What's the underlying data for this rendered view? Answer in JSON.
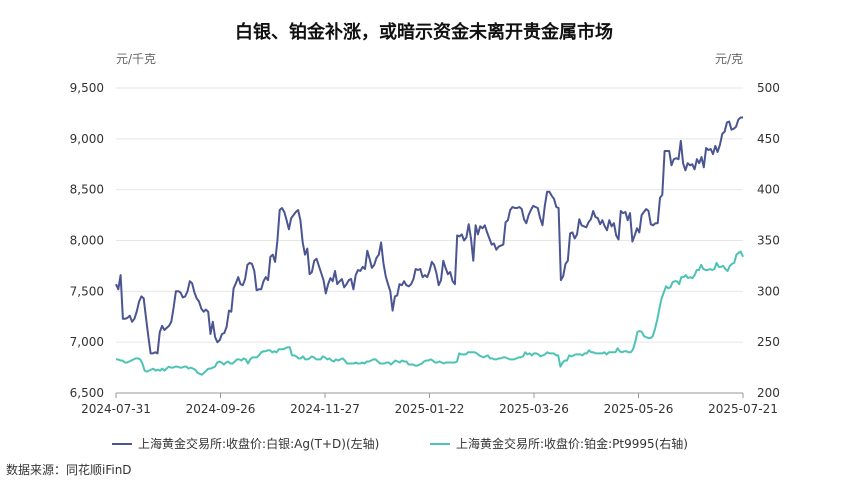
{
  "chart_data": {
    "type": "line",
    "title": "白银、铂金补涨，或暗示资金未离开贵金属市场",
    "left_unit": "元/千克",
    "right_unit": "元/克",
    "source": "数据来源：同花顺iFinD",
    "x_tick_labels": [
      "2024-07-31",
      "2024-09-26",
      "2024-11-27",
      "2025-01-22",
      "2025-03-26",
      "2025-05-26",
      "2025-07-21"
    ],
    "y_left": {
      "min": 6500,
      "max": 9500,
      "ticks": [
        6500,
        7000,
        7500,
        8000,
        8500,
        9000,
        9500
      ],
      "tick_labels": [
        "6,500",
        "7,000",
        "7,500",
        "8,000",
        "8,500",
        "9,000",
        "9,500"
      ]
    },
    "y_right": {
      "min": 200,
      "max": 500,
      "ticks": [
        200,
        250,
        300,
        350,
        400,
        450,
        500
      ],
      "tick_labels": [
        "200",
        "250",
        "300",
        "350",
        "400",
        "450",
        "500"
      ]
    },
    "grid": true,
    "legend_position": "bottom",
    "series": [
      {
        "name": "上海黄金交易所:收盘价:白银:Ag(T+D)(左轴)",
        "axis": "left",
        "color": "#4a5592",
        "values": [
          7570,
          7520,
          7660,
          7230,
          7230,
          7240,
          7260,
          7200,
          7230,
          7300,
          7400,
          7450,
          7430,
          7240,
          7060,
          6890,
          6890,
          6900,
          6890,
          7100,
          7160,
          7120,
          7140,
          7160,
          7200,
          7340,
          7500,
          7500,
          7490,
          7440,
          7450,
          7500,
          7600,
          7580,
          7490,
          7430,
          7400,
          7330,
          7300,
          7320,
          7300,
          7080,
          7200,
          7050,
          7000,
          7020,
          7080,
          7090,
          7150,
          7310,
          7300,
          7530,
          7580,
          7640,
          7570,
          7560,
          7620,
          7760,
          7780,
          7770,
          7700,
          7510,
          7520,
          7520,
          7600,
          7640,
          7610,
          7840,
          7860,
          7790,
          8000,
          8300,
          8320,
          8280,
          8200,
          8110,
          8220,
          8250,
          8280,
          8300,
          8200,
          7980,
          7860,
          7920,
          7670,
          7690,
          7800,
          7820,
          7750,
          7680,
          7610,
          7480,
          7570,
          7630,
          7600,
          7700,
          7570,
          7600,
          7620,
          7540,
          7570,
          7610,
          7620,
          7520,
          7660,
          7710,
          7700,
          7740,
          7720,
          7900,
          7820,
          7730,
          7760,
          7830,
          7860,
          7980,
          7780,
          7650,
          7570,
          7500,
          7310,
          7450,
          7460,
          7570,
          7560,
          7600,
          7560,
          7550,
          7570,
          7620,
          7720,
          7710,
          7720,
          7640,
          7660,
          7640,
          7700,
          7790,
          7760,
          7680,
          7560,
          7610,
          7800,
          7730,
          7670,
          7690,
          7600,
          7570,
          8050,
          8040,
          8060,
          8000,
          8030,
          8160,
          8020,
          7800,
          8150,
          8060,
          8140,
          8120,
          8150,
          8080,
          8020,
          7960,
          7970,
          7910,
          7940,
          7950,
          7960,
          8180,
          8200,
          8300,
          8330,
          8320,
          8320,
          8330,
          8310,
          8210,
          8170,
          8250,
          8300,
          8340,
          8330,
          8320,
          8220,
          8150,
          8340,
          8480,
          8480,
          8440,
          8410,
          8330,
          8320,
          7610,
          7650,
          7770,
          7800,
          8070,
          8080,
          8020,
          8060,
          8210,
          8150,
          8140,
          8130,
          8180,
          8210,
          8290,
          8230,
          8220,
          8160,
          8200,
          8140,
          8100,
          8200,
          8140,
          8170,
          8050,
          8010,
          8290,
          8270,
          8280,
          8200,
          8270,
          7990,
          8050,
          8120,
          8080,
          8250,
          8280,
          8310,
          8290,
          8160,
          8150,
          8170,
          8170,
          8420,
          8450,
          8880,
          8880,
          8880,
          8740,
          8800,
          8810,
          8800,
          8980,
          8760,
          8690,
          8760,
          8740,
          8750,
          8700,
          8800,
          8760,
          8820,
          8720,
          8910,
          8890,
          8900,
          8850,
          8930,
          8870,
          8940,
          9050,
          9070,
          9160,
          9170,
          9090,
          9100,
          9120,
          9190,
          9210,
          9210
        ]
      },
      {
        "name": "上海黄金交易所:收盘价:铂金:Pt9995(右轴)",
        "axis": "right",
        "color": "#4cc3b4",
        "values": [
          233,
          233,
          232,
          232,
          230,
          230,
          231,
          232,
          233,
          234,
          234,
          233,
          229,
          222,
          221,
          222,
          223,
          224,
          222,
          223,
          222,
          224,
          222,
          224,
          226,
          225,
          225,
          226,
          226,
          225,
          225,
          226,
          226,
          224,
          225,
          224,
          223,
          220,
          219,
          218,
          220,
          222,
          224,
          224,
          225,
          226,
          230,
          231,
          230,
          228,
          230,
          231,
          229,
          229,
          231,
          233,
          233,
          232,
          234,
          233,
          229,
          233,
          235,
          235,
          235,
          237,
          240,
          241,
          241,
          242,
          242,
          240,
          241,
          240,
          243,
          243,
          243,
          244,
          245,
          245,
          237,
          237,
          236,
          234,
          234,
          236,
          233,
          233,
          234,
          236,
          235,
          233,
          233,
          233,
          236,
          235,
          233,
          234,
          232,
          231,
          233,
          232,
          233,
          234,
          232,
          229,
          229,
          229,
          229,
          230,
          229,
          229,
          230,
          229,
          231,
          231,
          232,
          233,
          233,
          231,
          229,
          229,
          229,
          230,
          230,
          228,
          230,
          232,
          231,
          230,
          232,
          231,
          231,
          228,
          228,
          228,
          227,
          227,
          228,
          229,
          231,
          232,
          232,
          233,
          232,
          230,
          230,
          231,
          230,
          229,
          230,
          230,
          230,
          230,
          230,
          231,
          239,
          238,
          238,
          238,
          240,
          240,
          240,
          240,
          239,
          237,
          236,
          235,
          236,
          237,
          234,
          234,
          233,
          233,
          234,
          234,
          235,
          235,
          234,
          233,
          233,
          233,
          234,
          235,
          235,
          236,
          240,
          238,
          239,
          237,
          239,
          239,
          238,
          236,
          237,
          238,
          240,
          239,
          239,
          239,
          237,
          237,
          226,
          230,
          232,
          232,
          237,
          236,
          237,
          238,
          238,
          238,
          237,
          239,
          239,
          242,
          240,
          240,
          239,
          239,
          239,
          239,
          240,
          238,
          240,
          240,
          240,
          240,
          244,
          241,
          240,
          241,
          241,
          240,
          240,
          243,
          250,
          260,
          261,
          260,
          256,
          255,
          254,
          254,
          256,
          263,
          272,
          283,
          293,
          299,
          305,
          303,
          304,
          309,
          310,
          310,
          307,
          314,
          314,
          316,
          313,
          314,
          313,
          316,
          321,
          321,
          326,
          322,
          321,
          321,
          322,
          321,
          322,
          328,
          324,
          324,
          325,
          322,
          320,
          325,
          327,
          328,
          336,
          338,
          339,
          334
        ]
      }
    ]
  }
}
